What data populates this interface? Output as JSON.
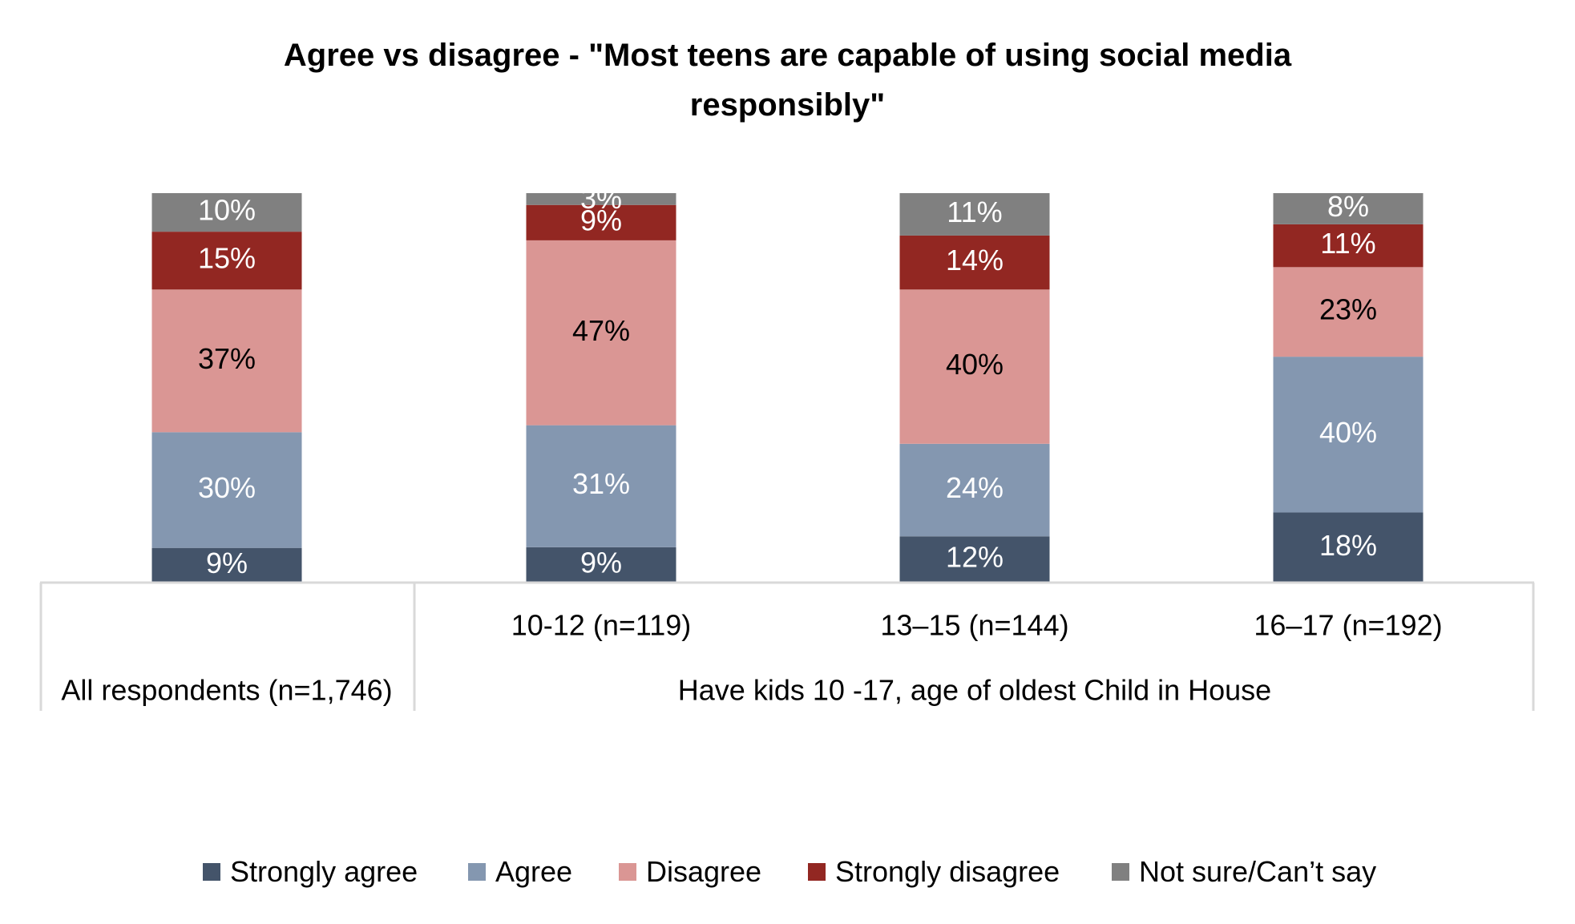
{
  "chart_data": {
    "type": "bar",
    "stacked": true,
    "title": "Agree vs disagree - \"Most teens are capable of using social media responsibly\"",
    "title_lines": [
      "Agree vs disagree - \"Most teens are capable of using social media",
      "responsibly\""
    ],
    "xlabel": "",
    "ylabel": "",
    "ylim": [
      0,
      100
    ],
    "grid": false,
    "legend_position": "bottom",
    "categories": [
      "All respondents (n=1,746)",
      "10-12 (n=119)",
      "13–15 (n=144)",
      "16–17 (n=192)"
    ],
    "category_groups": [
      {
        "label": "All respondents (n=1,746)",
        "members": [
          0
        ]
      },
      {
        "label": "Have kids 10 -17, age of oldest Child in House",
        "members": [
          1,
          2,
          3
        ]
      }
    ],
    "series": [
      {
        "name": "Strongly agree",
        "color": "#44546A",
        "label_color": "#ffffff",
        "values": [
          9,
          9,
          12,
          18
        ]
      },
      {
        "name": "Agree",
        "color": "#8497B0",
        "label_color": "#ffffff",
        "values": [
          30,
          31,
          24,
          40
        ]
      },
      {
        "name": "Disagree",
        "color": "#DA9694",
        "label_color": "#000000",
        "values": [
          37,
          47,
          40,
          23
        ]
      },
      {
        "name": "Strongly disagree",
        "color": "#922722",
        "label_color": "#ffffff",
        "values": [
          15,
          9,
          14,
          11
        ]
      },
      {
        "name": "Not sure/Can’t say",
        "color": "#808080",
        "label_color": "#ffffff",
        "values": [
          10,
          3,
          11,
          8
        ]
      }
    ],
    "value_suffix": "%"
  }
}
